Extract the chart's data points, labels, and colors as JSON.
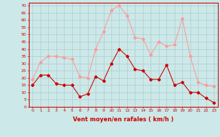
{
  "hours": [
    0,
    1,
    2,
    3,
    4,
    5,
    6,
    7,
    8,
    9,
    10,
    11,
    12,
    13,
    14,
    15,
    16,
    17,
    18,
    19,
    20,
    21,
    22,
    23
  ],
  "wind_avg": [
    15,
    22,
    22,
    16,
    15,
    15,
    7,
    9,
    21,
    18,
    30,
    40,
    35,
    26,
    25,
    19,
    19,
    29,
    15,
    17,
    10,
    10,
    6,
    3
  ],
  "wind_gust": [
    19,
    31,
    35,
    35,
    34,
    33,
    21,
    20,
    40,
    52,
    67,
    70,
    63,
    48,
    47,
    36,
    45,
    42,
    43,
    61,
    35,
    17,
    15,
    14
  ],
  "bg_color": "#cce8e8",
  "grid_color": "#aacccc",
  "avg_color": "#cc0000",
  "gust_color": "#ff9999",
  "xlabel": "Vent moyen/en rafales ( km/h )",
  "ylabel_ticks": [
    0,
    5,
    10,
    15,
    20,
    25,
    30,
    35,
    40,
    45,
    50,
    55,
    60,
    65,
    70
  ],
  "ylim": [
    0,
    72
  ],
  "xlabel_color": "#cc0000",
  "tick_color": "#cc0000",
  "line_width": 0.8,
  "marker_size": 2.0
}
